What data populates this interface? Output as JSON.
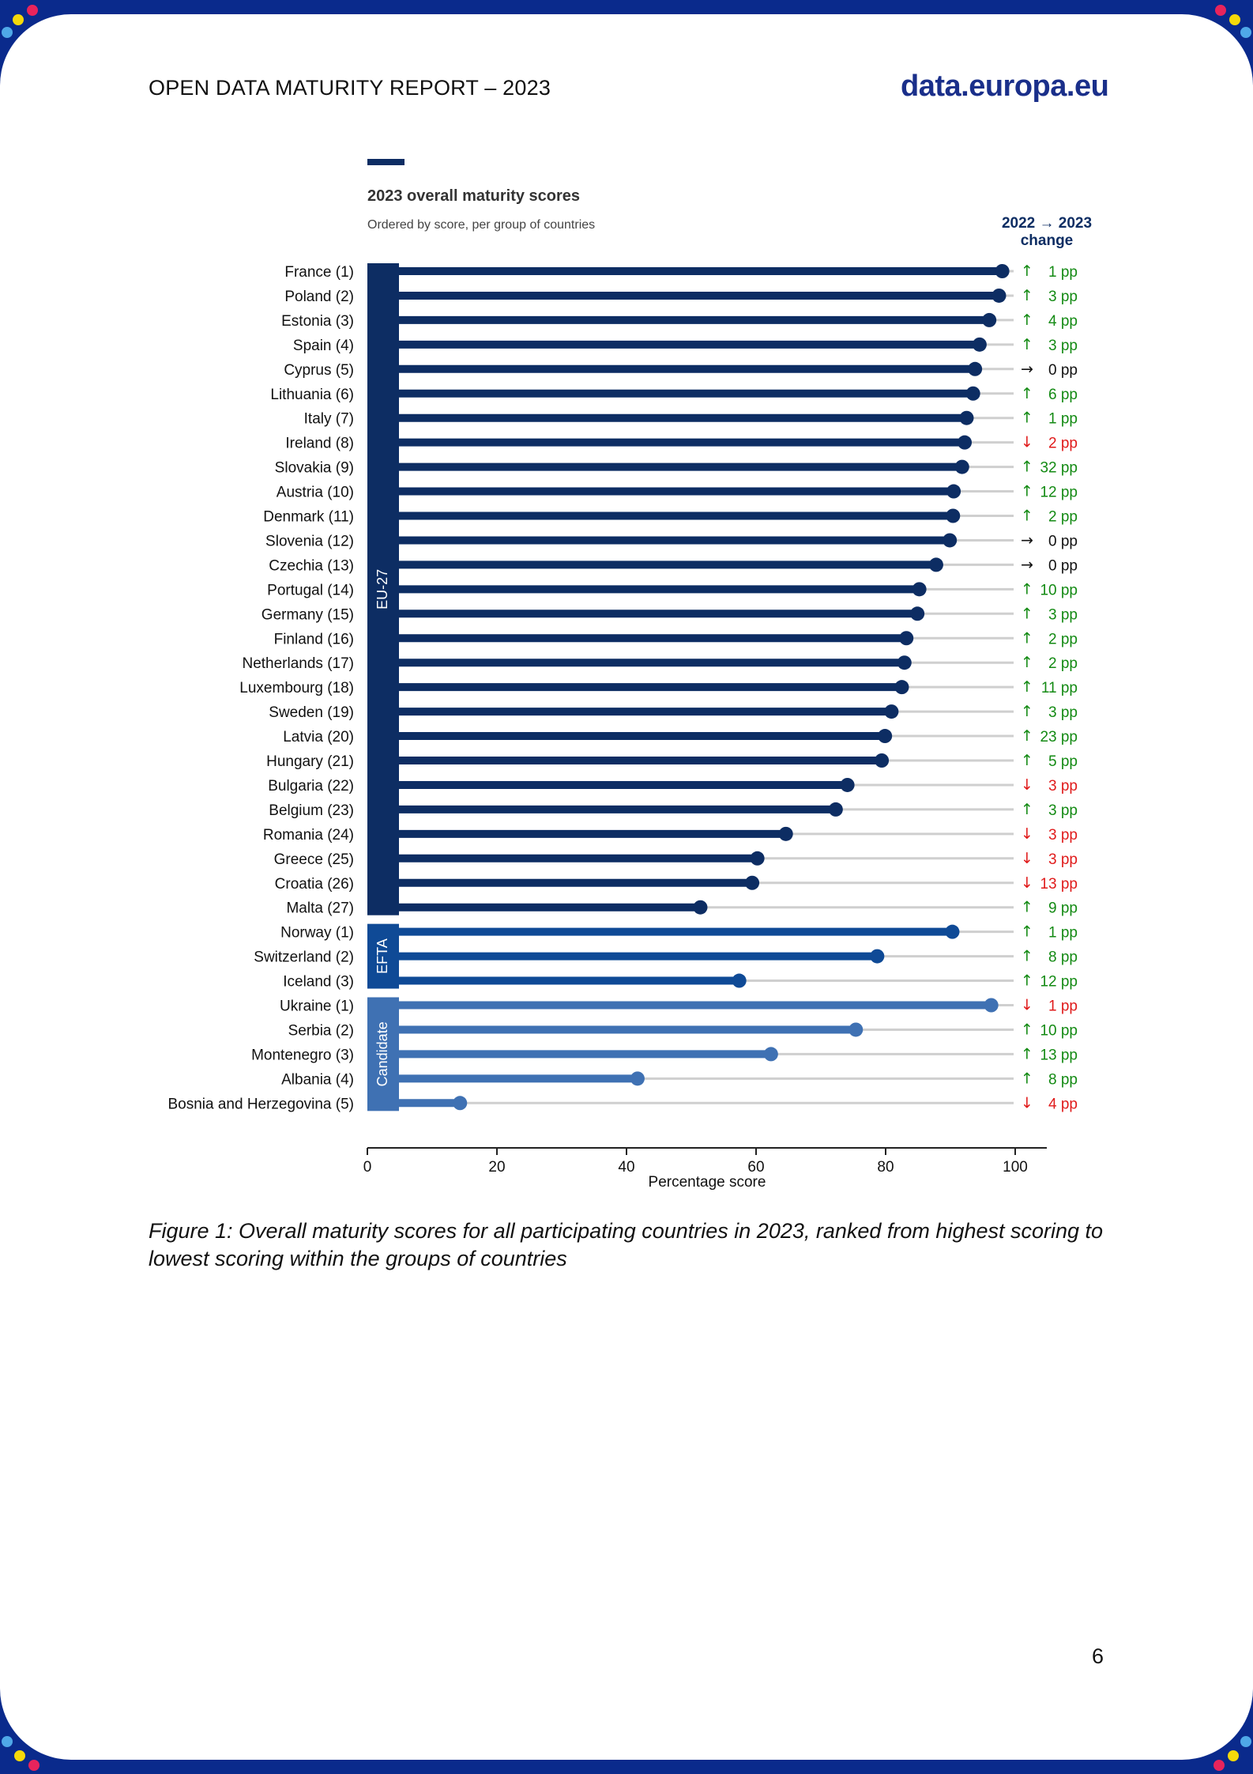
{
  "header": {
    "title": "OPEN DATA MATURITY REPORT – 2023",
    "logo": "data.europa.eu"
  },
  "chart_data": {
    "type": "lollipop",
    "title": "2023 overall maturity scores",
    "subtitle": "Ordered by score, per group of countries",
    "change_header": [
      "2022 → 2023",
      "change"
    ],
    "xlabel": "Percentage score",
    "xlim": [
      0,
      105
    ],
    "xticks": [
      0,
      20,
      40,
      60,
      80,
      100
    ],
    "groups": [
      {
        "name": "EU-27",
        "color": "#0d2d63",
        "countries": [
          {
            "label": "France (1)",
            "score": 98,
            "change": "1 pp",
            "dir": "up"
          },
          {
            "label": "Poland (2)",
            "score": 97.5,
            "change": "3 pp",
            "dir": "up"
          },
          {
            "label": "Estonia (3)",
            "score": 96,
            "change": "4 pp",
            "dir": "up"
          },
          {
            "label": "Spain (4)",
            "score": 94.5,
            "change": "3 pp",
            "dir": "up"
          },
          {
            "label": "Cyprus (5)",
            "score": 93.8,
            "change": "0 pp",
            "dir": "flat"
          },
          {
            "label": "Lithuania (6)",
            "score": 93.5,
            "change": "6 pp",
            "dir": "up"
          },
          {
            "label": "Italy (7)",
            "score": 92.5,
            "change": "1 pp",
            "dir": "up"
          },
          {
            "label": "Ireland (8)",
            "score": 92.2,
            "change": "2 pp",
            "dir": "down"
          },
          {
            "label": "Slovakia (9)",
            "score": 91.8,
            "change": "32 pp",
            "dir": "up"
          },
          {
            "label": "Austria (10)",
            "score": 90.5,
            "change": "12 pp",
            "dir": "up"
          },
          {
            "label": "Denmark (11)",
            "score": 90.4,
            "change": "2 pp",
            "dir": "up"
          },
          {
            "label": "Slovenia (12)",
            "score": 89.9,
            "change": "0 pp",
            "dir": "flat"
          },
          {
            "label": "Czechia (13)",
            "score": 87.8,
            "change": "0 pp",
            "dir": "flat"
          },
          {
            "label": "Portugal (14)",
            "score": 85.2,
            "change": "10 pp",
            "dir": "up"
          },
          {
            "label": "Germany (15)",
            "score": 84.9,
            "change": "3 pp",
            "dir": "up"
          },
          {
            "label": "Finland (16)",
            "score": 83.2,
            "change": "2 pp",
            "dir": "up"
          },
          {
            "label": "Netherlands (17)",
            "score": 82.9,
            "change": "2 pp",
            "dir": "up"
          },
          {
            "label": "Luxembourg (18)",
            "score": 82.5,
            "change": "11 pp",
            "dir": "up"
          },
          {
            "label": "Sweden (19)",
            "score": 80.9,
            "change": "3 pp",
            "dir": "up"
          },
          {
            "label": "Latvia (20)",
            "score": 79.9,
            "change": "23 pp",
            "dir": "up"
          },
          {
            "label": "Hungary (21)",
            "score": 79.4,
            "change": "5 pp",
            "dir": "up"
          },
          {
            "label": "Bulgaria (22)",
            "score": 74.1,
            "change": "3 pp",
            "dir": "down"
          },
          {
            "label": "Belgium (23)",
            "score": 72.3,
            "change": "3 pp",
            "dir": "up"
          },
          {
            "label": "Romania (24)",
            "score": 64.6,
            "change": "3 pp",
            "dir": "down"
          },
          {
            "label": "Greece (25)",
            "score": 60.2,
            "change": "3 pp",
            "dir": "down"
          },
          {
            "label": "Croatia (26)",
            "score": 59.4,
            "change": "13 pp",
            "dir": "down"
          },
          {
            "label": "Malta (27)",
            "score": 51.4,
            "change": "9 pp",
            "dir": "up"
          }
        ]
      },
      {
        "name": "EFTA",
        "color": "#0f4a96",
        "countries": [
          {
            "label": "Norway (1)",
            "score": 90.3,
            "change": "1 pp",
            "dir": "up"
          },
          {
            "label": "Switzerland (2)",
            "score": 78.7,
            "change": "8 pp",
            "dir": "up"
          },
          {
            "label": "Iceland (3)",
            "score": 57.4,
            "change": "12 pp",
            "dir": "up"
          }
        ]
      },
      {
        "name": "Candidate",
        "color": "#3f71b3",
        "countries": [
          {
            "label": "Ukraine (1)",
            "score": 96.3,
            "change": "1 pp",
            "dir": "down"
          },
          {
            "label": "Serbia (2)",
            "score": 75.4,
            "change": "10 pp",
            "dir": "up"
          },
          {
            "label": "Montenegro (3)",
            "score": 62.3,
            "change": "13 pp",
            "dir": "up"
          },
          {
            "label": "Albania (4)",
            "score": 41.7,
            "change": "8 pp",
            "dir": "up"
          },
          {
            "label": "Bosnia and Herzegovina (5)",
            "score": 14.3,
            "change": "4 pp",
            "dir": "down"
          }
        ]
      }
    ]
  },
  "arrows": {
    "up": "↑",
    "down": "↓",
    "flat": "→"
  },
  "colors": {
    "up": "#138a13",
    "down": "#e01b1b",
    "flat": "#111111",
    "track": "#cfcfcf",
    "accent": "#0d2d63"
  },
  "caption": "Figure 1: Overall maturity scores for all participating countries in 2023, ranked from highest scoring to lowest scoring within the groups of countries",
  "page_number": "6"
}
